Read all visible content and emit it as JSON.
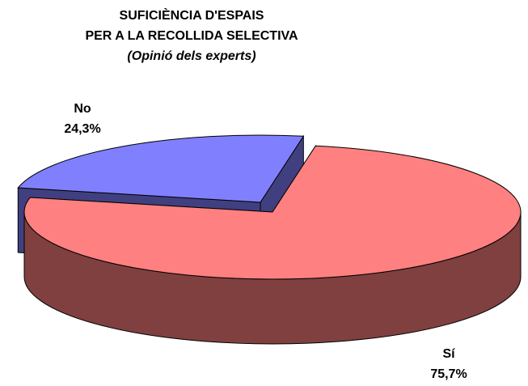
{
  "chart_data": {
    "type": "pie",
    "title_lines": [
      "SUFICIÈNCIA D'ESPAIS",
      "PER A LA RECOLLIDA SELECTIVA"
    ],
    "subtitle": "(Opinió dels experts)",
    "categories": [
      "No",
      "Sí"
    ],
    "values": [
      24.3,
      75.7
    ],
    "value_labels": [
      "24,3%",
      "75,7%"
    ],
    "colors": [
      "#8080ff",
      "#ff8080"
    ],
    "side_colors": [
      "#404080",
      "#804040"
    ]
  }
}
